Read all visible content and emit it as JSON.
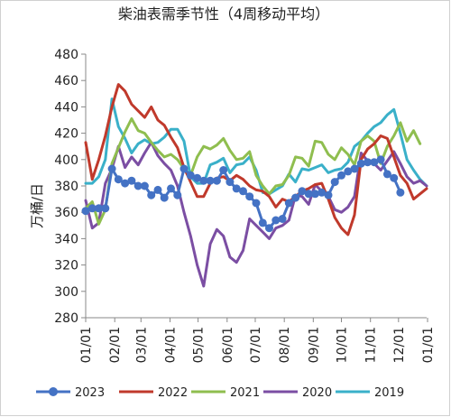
{
  "chart_data": {
    "type": "line",
    "title": "柴油表需季节性（4周移动平均）",
    "ylabel": "万桶/日",
    "xlabel": "",
    "ylim": [
      280,
      480
    ],
    "yticks": [
      280,
      300,
      320,
      340,
      360,
      380,
      400,
      420,
      440,
      460,
      480
    ],
    "xlim": [
      0,
      52
    ],
    "xticks": [
      {
        "pos": 0,
        "label": "01/01"
      },
      {
        "pos": 4.43,
        "label": "02/01"
      },
      {
        "pos": 8.43,
        "label": "03/01"
      },
      {
        "pos": 12.86,
        "label": "04/01"
      },
      {
        "pos": 17.14,
        "label": "05/01"
      },
      {
        "pos": 21.57,
        "label": "06/01"
      },
      {
        "pos": 25.86,
        "label": "07/01"
      },
      {
        "pos": 30.29,
        "label": "08/01"
      },
      {
        "pos": 34.71,
        "label": "09/01"
      },
      {
        "pos": 39.0,
        "label": "10/01"
      },
      {
        "pos": 43.43,
        "label": "11/01"
      },
      {
        "pos": 47.71,
        "label": "12/01"
      },
      {
        "pos": 52.14,
        "label": "01/01"
      }
    ],
    "grid": false,
    "legend": "bottom",
    "series": [
      {
        "name": "2023",
        "color": "#4472c4",
        "marker": true,
        "x": [
          0,
          1,
          2,
          3,
          4,
          5,
          6,
          7,
          8,
          9,
          10,
          11,
          12,
          13,
          14,
          15,
          16,
          17,
          18,
          19,
          20,
          21,
          22,
          23,
          24,
          25,
          26,
          27,
          28,
          29,
          30,
          31,
          32,
          33,
          34,
          35,
          36,
          37,
          38,
          39,
          40,
          41,
          42,
          43,
          44,
          45,
          46,
          47,
          48
        ],
        "values": [
          361,
          363,
          363,
          363,
          393,
          385,
          382,
          384,
          380,
          380,
          373,
          377,
          371,
          378,
          373,
          393,
          388,
          386,
          384,
          384,
          384,
          392,
          383,
          378,
          376,
          372,
          367,
          352,
          348,
          354,
          355,
          367,
          371,
          376,
          374,
          374,
          375,
          373,
          383,
          388,
          391,
          393,
          397,
          398,
          398,
          400,
          389,
          386,
          375
        ]
      },
      {
        "name": "2022",
        "color": "#c0392b",
        "marker": false,
        "x": [
          0,
          1,
          2,
          3,
          4,
          5,
          6,
          7,
          8,
          9,
          10,
          11,
          12,
          13,
          14,
          15,
          16,
          17,
          18,
          19,
          20,
          21,
          22,
          23,
          24,
          25,
          26,
          27,
          28,
          29,
          30,
          31,
          32,
          33,
          34,
          35,
          36,
          37,
          38,
          39,
          40,
          41,
          42,
          43,
          44,
          45,
          46,
          47,
          48,
          49,
          50,
          51,
          52
        ],
        "values": [
          413,
          385,
          400,
          418,
          440,
          457,
          452,
          442,
          437,
          432,
          440,
          430,
          426,
          417,
          409,
          394,
          383,
          372,
          372,
          382,
          386,
          387,
          384,
          388,
          385,
          380,
          377,
          376,
          372,
          364,
          370,
          368,
          372,
          376,
          378,
          381,
          382,
          370,
          356,
          348,
          343,
          358,
          400,
          408,
          412,
          418,
          416,
          402,
          388,
          382,
          370,
          374,
          378
        ]
      },
      {
        "name": "2021",
        "color": "#8fbe4f",
        "marker": false,
        "x": [
          0,
          1,
          2,
          3,
          4,
          5,
          6,
          7,
          8,
          9,
          10,
          11,
          12,
          13,
          14,
          15,
          16,
          17,
          18,
          19,
          20,
          21,
          22,
          23,
          24,
          25,
          26,
          27,
          28,
          29,
          30,
          31,
          32,
          33,
          34,
          35,
          36,
          37,
          38,
          39,
          40,
          41,
          42,
          43,
          44,
          45,
          46,
          47,
          48,
          49,
          50,
          51
        ],
        "values": [
          363,
          368,
          351,
          362,
          397,
          409,
          421,
          431,
          422,
          420,
          413,
          407,
          402,
          404,
          400,
          393,
          388,
          402,
          410,
          408,
          411,
          416,
          407,
          400,
          401,
          406,
          388,
          380,
          374,
          380,
          381,
          388,
          402,
          401,
          395,
          414,
          413,
          404,
          400,
          409,
          404,
          396,
          414,
          418,
          414,
          397,
          410,
          418,
          428,
          414,
          422,
          412
        ]
      },
      {
        "name": "2020",
        "color": "#7b4ea3",
        "marker": false,
        "x": [
          0,
          1,
          2,
          3,
          4,
          5,
          6,
          7,
          8,
          9,
          10,
          11,
          12,
          13,
          14,
          15,
          16,
          17,
          18,
          19,
          20,
          21,
          22,
          23,
          24,
          25,
          26,
          27,
          28,
          29,
          30,
          31,
          32,
          33,
          34,
          35,
          36,
          37,
          38,
          39,
          40,
          41,
          42,
          43,
          44,
          45,
          46,
          47,
          48,
          49,
          50,
          51,
          52
        ],
        "values": [
          369,
          348,
          352,
          382,
          393,
          410,
          394,
          402,
          396,
          405,
          413,
          403,
          397,
          392,
          380,
          360,
          342,
          320,
          304,
          336,
          347,
          342,
          326,
          322,
          331,
          355,
          350,
          345,
          340,
          348,
          350,
          354,
          373,
          372,
          366,
          381,
          376,
          372,
          362,
          360,
          364,
          372,
          405,
          399,
          397,
          392,
          399,
          406,
          397,
          387,
          382,
          384,
          380
        ]
      },
      {
        "name": "2019",
        "color": "#3ab0c9",
        "marker": false,
        "x": [
          0,
          1,
          2,
          3,
          4,
          5,
          6,
          7,
          8,
          9,
          10,
          11,
          12,
          13,
          14,
          15,
          16,
          17,
          18,
          19,
          20,
          21,
          22,
          23,
          24,
          25,
          26,
          27,
          28,
          29,
          30,
          31,
          32,
          33,
          34,
          35,
          36,
          37,
          38,
          39,
          40,
          41,
          42,
          43,
          44,
          45,
          46,
          47,
          48,
          49,
          50,
          51,
          52
        ],
        "values": [
          382,
          382,
          387,
          400,
          446,
          425,
          416,
          405,
          412,
          415,
          412,
          413,
          417,
          423,
          423,
          414,
          387,
          382,
          382,
          396,
          398,
          401,
          390,
          396,
          397,
          402,
          392,
          375,
          374,
          377,
          380,
          389,
          383,
          393,
          392,
          394,
          396,
          390,
          392,
          393,
          398,
          410,
          414,
          420,
          425,
          428,
          434,
          438,
          420,
          400,
          392,
          385,
          380
        ]
      }
    ]
  }
}
